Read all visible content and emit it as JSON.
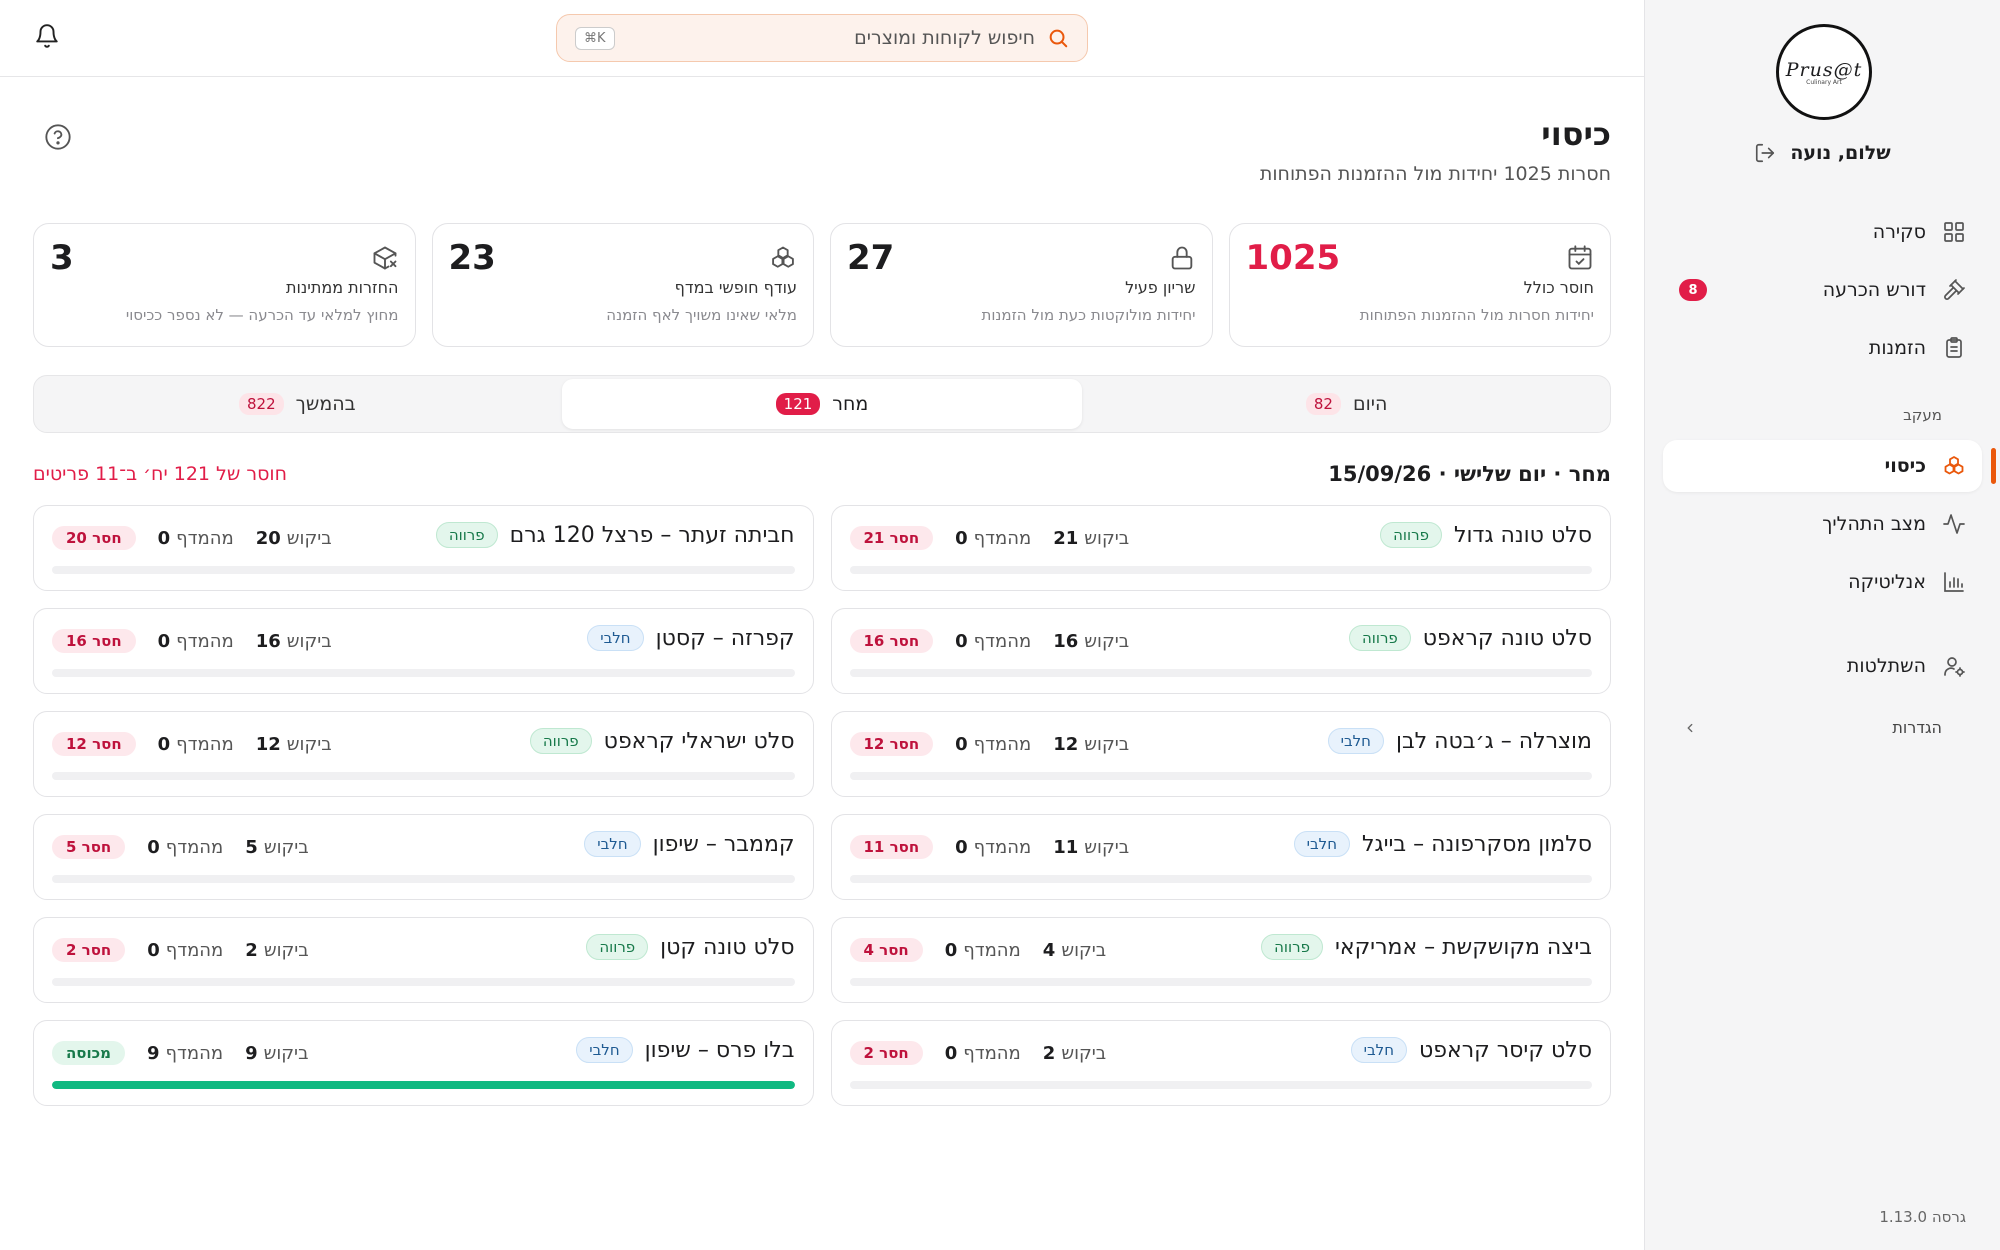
{
  "sidebar": {
    "logo_text": "Prus@t",
    "logo_sub": "Culinary Art",
    "greeting": "שלום, נועה",
    "nav": [
      {
        "label": "סקירה",
        "icon": "grid-icon"
      },
      {
        "label": "דורש הכרעה",
        "icon": "gavel-icon",
        "badge": "8"
      },
      {
        "label": "הזמנות",
        "icon": "clipboard-icon"
      }
    ],
    "section_label": "מעקב",
    "tracking": [
      {
        "label": "כיסוי",
        "icon": "boxes-icon",
        "active": true
      },
      {
        "label": "מצב התהליך",
        "icon": "activity-icon"
      },
      {
        "label": "אנליטיקה",
        "icon": "bar-chart-icon"
      }
    ],
    "training": {
      "label": "השתלטות",
      "icon": "user-cog-icon"
    },
    "settings_label": "הגדרות",
    "version": "גרסה 1.13.0"
  },
  "topbar": {
    "search_placeholder": "חיפוש לקוחות ומוצרים",
    "shortcut": "⌘K"
  },
  "page": {
    "title": "כיסוי",
    "subtitle": "חסרות 1025 יחידות מול ההזמנות הפתוחות"
  },
  "stats": [
    {
      "label": "חוסר כולל",
      "desc": "יחידות חסרות מול ההזמנות הפתוחות",
      "value": "1025",
      "icon": "calendar-check-icon",
      "highlight": true
    },
    {
      "label": "שריון פעיל",
      "desc": "יחידות מולוקטות כעת מול הזמנות",
      "value": "27",
      "icon": "lock-icon"
    },
    {
      "label": "עודף חופשי במדף",
      "desc": "מלאי שאינו משויך לאף הזמנה",
      "value": "23",
      "icon": "boxes-icon"
    },
    {
      "label": "החזרות ממתינות",
      "desc": "מחוץ למלאי עד הכרעה — לא נספר ככיסוי",
      "value": "3",
      "icon": "package-x-icon"
    }
  ],
  "tabs": [
    {
      "label": "היום",
      "count": "82"
    },
    {
      "label": "מחר",
      "count": "121",
      "active": true
    },
    {
      "label": "בהמשך",
      "count": "822"
    }
  ],
  "day": {
    "header": "מחר · יום שלישי · 15/09/26",
    "summary": "חוסר של 121 יח׳ ב־11 פריטים"
  },
  "labels": {
    "demand": "ביקוש",
    "shelf": "מהמדף",
    "parve": "פרווה",
    "dairy": "חלבי"
  },
  "items": [
    {
      "name": "סלט טונה גדול",
      "tag": "פרווה",
      "tag_type": "parve",
      "demand": "21",
      "shelf": "0",
      "status": "חסר 21",
      "covered": false,
      "fill": 0
    },
    {
      "name": "חביתה זעתר – פרצל 120 גרם",
      "tag": "פרווה",
      "tag_type": "parve",
      "demand": "20",
      "shelf": "0",
      "status": "חסר 20",
      "covered": false,
      "fill": 0
    },
    {
      "name": "סלט טונה קראפט",
      "tag": "פרווה",
      "tag_type": "parve",
      "demand": "16",
      "shelf": "0",
      "status": "חסר 16",
      "covered": false,
      "fill": 0
    },
    {
      "name": "קפרזה – קסטן",
      "tag": "חלבי",
      "tag_type": "dairy",
      "demand": "16",
      "shelf": "0",
      "status": "חסר 16",
      "covered": false,
      "fill": 0
    },
    {
      "name": "מוצרלה – ג׳בטה לבן",
      "tag": "חלבי",
      "tag_type": "dairy",
      "demand": "12",
      "shelf": "0",
      "status": "חסר 12",
      "covered": false,
      "fill": 0
    },
    {
      "name": "סלט ישראלי קראפט",
      "tag": "פרווה",
      "tag_type": "parve",
      "demand": "12",
      "shelf": "0",
      "status": "חסר 12",
      "covered": false,
      "fill": 0
    },
    {
      "name": "סלמון מסקרפונה – בייגל",
      "tag": "חלבי",
      "tag_type": "dairy",
      "demand": "11",
      "shelf": "0",
      "status": "חסר 11",
      "covered": false,
      "fill": 0
    },
    {
      "name": "קממבר – שיפון",
      "tag": "חלבי",
      "tag_type": "dairy",
      "demand": "5",
      "shelf": "0",
      "status": "חסר 5",
      "covered": false,
      "fill": 0
    },
    {
      "name": "ביצה מקושקשת – אמריקאי",
      "tag": "פרווה",
      "tag_type": "parve",
      "demand": "4",
      "shelf": "0",
      "status": "חסר 4",
      "covered": false,
      "fill": 0
    },
    {
      "name": "סלט טונה קטן",
      "tag": "פרווה",
      "tag_type": "parve",
      "demand": "2",
      "shelf": "0",
      "status": "חסר 2",
      "covered": false,
      "fill": 0
    },
    {
      "name": "סלט קיסר קראפט",
      "tag": "חלבי",
      "tag_type": "dairy",
      "demand": "2",
      "shelf": "0",
      "status": "חסר 2",
      "covered": false,
      "fill": 0
    },
    {
      "name": "בלו פרס – שיפון",
      "tag": "חלבי",
      "tag_type": "dairy",
      "demand": "9",
      "shelf": "9",
      "status": "מכוסה",
      "covered": true,
      "fill": 1
    }
  ],
  "colors": {
    "accent": "#ea580c",
    "danger": "#e11d48",
    "success": "#10b981"
  }
}
